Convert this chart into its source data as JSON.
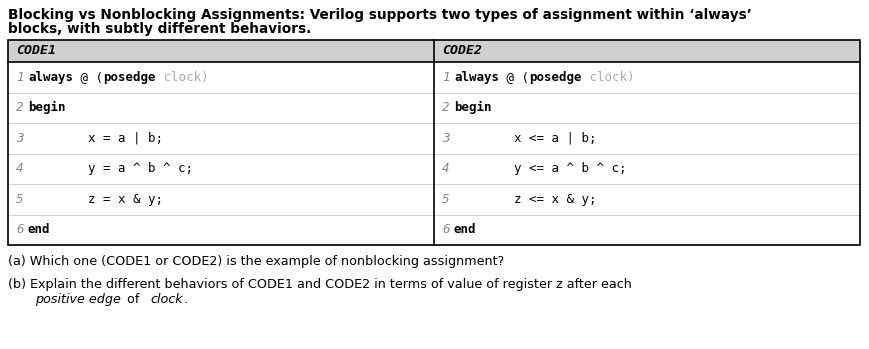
{
  "title_line1": "Blocking vs Nonblocking Assignments: Verilog supports two types of assignment within ‘always’",
  "title_line2": "blocks, with subtly different behaviors.",
  "header1": "CODE1",
  "header2": "CODE2",
  "code1": [
    [
      "1",
      [
        [
          "always",
          true,
          false
        ],
        [
          " @ (",
          false,
          false
        ],
        [
          "posedge",
          true,
          false
        ],
        [
          " clock)",
          false,
          true
        ]
      ]
    ],
    [
      "2",
      [
        [
          "begin",
          true,
          false
        ]
      ]
    ],
    [
      "3",
      [
        [
          "        x = a | b;",
          false,
          false
        ]
      ]
    ],
    [
      "4",
      [
        [
          "        y = a ^ b ^ c;",
          false,
          false
        ]
      ]
    ],
    [
      "5",
      [
        [
          "        z = x & y;",
          false,
          false
        ]
      ]
    ],
    [
      "6",
      [
        [
          "end",
          true,
          false
        ]
      ]
    ]
  ],
  "code2": [
    [
      "1",
      [
        [
          "always",
          true,
          false
        ],
        [
          " @ (",
          false,
          false
        ],
        [
          "posedge",
          true,
          false
        ],
        [
          " clock)",
          false,
          true
        ]
      ]
    ],
    [
      "2",
      [
        [
          "begin",
          true,
          false
        ]
      ]
    ],
    [
      "3",
      [
        [
          "        x <= a | b;",
          false,
          false
        ]
      ]
    ],
    [
      "4",
      [
        [
          "        y <= a ^ b ^ c;",
          false,
          false
        ]
      ]
    ],
    [
      "5",
      [
        [
          "        z <= x & y;",
          false,
          false
        ]
      ]
    ],
    [
      "6",
      [
        [
          "end",
          true,
          false
        ]
      ]
    ]
  ],
  "qa": "(a) Which one (CODE1 or CODE2) is the example of nonblocking assignment?",
  "qb1": "(b) Explain the different behaviors of CODE1 and CODE2 in terms of value of register z after each",
  "qb2_parts": [
    [
      "    ",
      false,
      false
    ],
    [
      "positive edge",
      false,
      true
    ],
    [
      " of ",
      false,
      false
    ],
    [
      "clock",
      false,
      true
    ],
    [
      ".",
      false,
      false
    ]
  ],
  "bg_color": "#ffffff",
  "header_bg": "#d0d0d0",
  "border_color": "#000000",
  "num_color": "#888888",
  "clock_color": "#aaaaaa",
  "text_color": "#000000"
}
